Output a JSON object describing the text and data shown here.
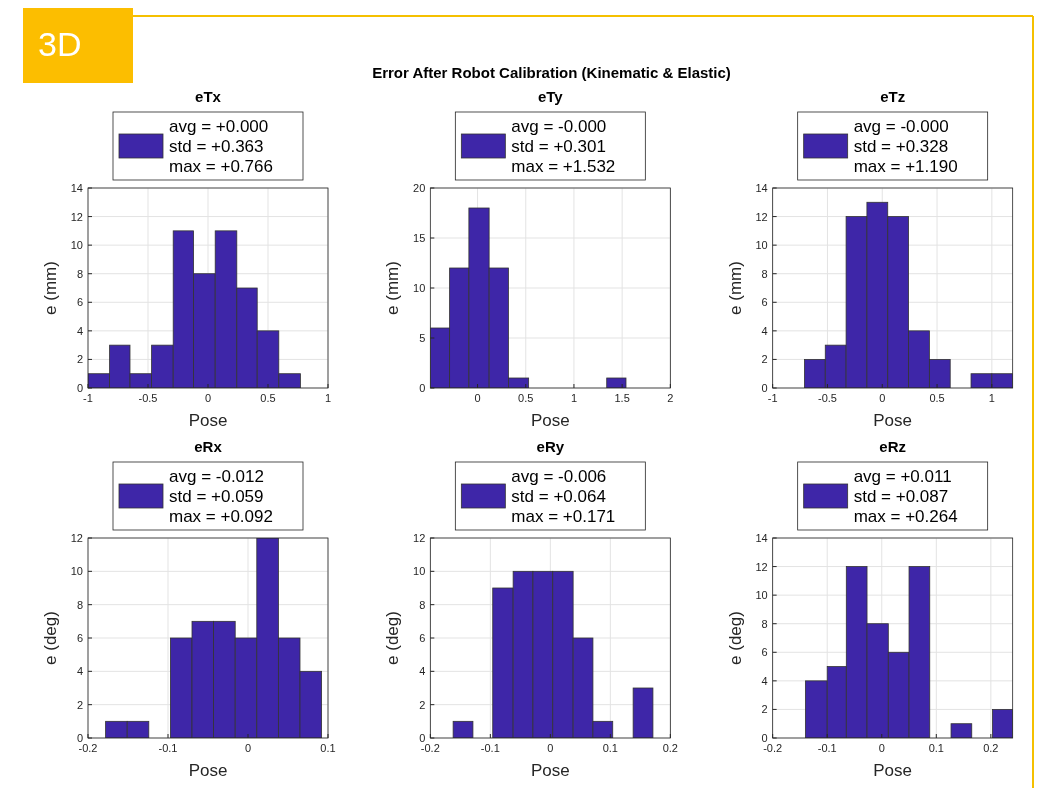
{
  "chart_data": [
    {
      "type": "histogram",
      "title": "eTx",
      "xlabel": "Pose",
      "ylabel": "e (mm)",
      "annotations": [
        "3D",
        "Error After Robot Calibration (Kinematic & Elastic)"
      ],
      "xlim": [
        -1,
        1
      ],
      "xticks": [
        -1,
        -0.5,
        0,
        0.5,
        1
      ],
      "ylim": [
        0,
        14
      ],
      "yticks": [
        0,
        2,
        4,
        6,
        8,
        10,
        12,
        14
      ],
      "grid": true,
      "legend": "top",
      "bins": [
        -1,
        -0.82,
        -0.65,
        -0.47,
        -0.29,
        -0.12,
        0.06,
        0.24,
        0.41,
        0.59,
        0.77
      ],
      "series": [
        {
          "name": "avg = +0.000\nstd = +0.363\nmax = +0.766",
          "color": "#3e26a8",
          "values": [
            1,
            3,
            1,
            3,
            11,
            8,
            11,
            7,
            4,
            1
          ]
        }
      ]
    },
    {
      "type": "histogram",
      "title": "eTy",
      "xlabel": "Pose",
      "ylabel": "e (mm)",
      "xlim": [
        -0.49,
        2
      ],
      "xticks": [
        0,
        0.5,
        1,
        1.5,
        2
      ],
      "ylim": [
        0,
        20
      ],
      "yticks": [
        0,
        5,
        10,
        15,
        20
      ],
      "grid": true,
      "legend": "top",
      "bins": [
        -0.49,
        -0.29,
        -0.09,
        0.12,
        0.32,
        0.53,
        1.34,
        1.54
      ],
      "series": [
        {
          "name": "avg = -0.000\nstd = +0.301\nmax = +1.532",
          "color": "#3e26a8",
          "values": [
            6,
            12,
            18,
            12,
            1,
            0,
            1
          ]
        }
      ]
    },
    {
      "type": "histogram",
      "title": "eTz",
      "xlabel": "Pose",
      "ylabel": "e (mm)",
      "xlim": [
        -1,
        1.19
      ],
      "xticks": [
        -1,
        -0.5,
        0,
        0.5,
        1
      ],
      "ylim": [
        0,
        14
      ],
      "yticks": [
        0,
        2,
        4,
        6,
        8,
        10,
        12,
        14
      ],
      "grid": true,
      "legend": "top",
      "bins": [
        -0.71,
        -0.52,
        -0.33,
        -0.14,
        0.05,
        0.24,
        0.43,
        0.62,
        0.81,
        1,
        1.19
      ],
      "series": [
        {
          "name": "avg = -0.000\nstd = +0.328\nmax = +1.190",
          "color": "#3e26a8",
          "values": [
            2,
            3,
            12,
            13,
            12,
            4,
            2,
            0,
            1,
            1
          ]
        }
      ]
    },
    {
      "type": "histogram",
      "title": "eRx",
      "xlabel": "Pose",
      "ylabel": "e (deg)",
      "xlim": [
        -0.2,
        0.1
      ],
      "xticks": [
        -0.2,
        -0.1,
        0,
        0.1
      ],
      "ylim": [
        0,
        12
      ],
      "yticks": [
        0,
        2,
        4,
        6,
        8,
        10,
        12
      ],
      "grid": true,
      "legend": "top",
      "bins": [
        -0.178,
        -0.151,
        -0.124,
        -0.097,
        -0.07,
        -0.043,
        -0.016,
        0.011,
        0.038,
        0.065,
        0.092
      ],
      "series": [
        {
          "name": "avg = -0.012\nstd = +0.059\nmax = +0.092",
          "color": "#3e26a8",
          "values": [
            1,
            1,
            0,
            6,
            7,
            7,
            6,
            12,
            6,
            4
          ]
        }
      ]
    },
    {
      "type": "histogram",
      "title": "eRy",
      "xlabel": "Pose",
      "ylabel": "e (deg)",
      "xlim": [
        -0.2,
        0.2
      ],
      "xticks": [
        -0.2,
        -0.1,
        0,
        0.1,
        0.2
      ],
      "ylim": [
        0,
        12
      ],
      "yticks": [
        0,
        2,
        4,
        6,
        8,
        10,
        12
      ],
      "grid": true,
      "legend": "top",
      "bins": [
        -0.162,
        -0.129,
        -0.096,
        -0.062,
        -0.029,
        0.004,
        0.038,
        0.071,
        0.104,
        0.138,
        0.171
      ],
      "series": [
        {
          "name": "avg = -0.006\nstd = +0.064\nmax = +0.171",
          "color": "#3e26a8",
          "values": [
            1,
            0,
            9,
            10,
            10,
            10,
            6,
            1,
            0,
            3
          ]
        }
      ]
    },
    {
      "type": "histogram",
      "title": "eRz",
      "xlabel": "Pose",
      "ylabel": "e (deg)",
      "xlim": [
        -0.2,
        0.24
      ],
      "xticks": [
        -0.2,
        -0.1,
        0,
        0.1,
        0.2
      ],
      "ylim": [
        0,
        14
      ],
      "yticks": [
        0,
        2,
        4,
        6,
        8,
        10,
        12,
        14
      ],
      "grid": true,
      "legend": "top",
      "bins": [
        -0.14,
        -0.1,
        -0.065,
        -0.027,
        0.012,
        0.05,
        0.088,
        0.127,
        0.165,
        0.203,
        0.24
      ],
      "series": [
        {
          "name": "avg = +0.011\nstd = +0.087\nmax = +0.264",
          "color": "#3e26a8",
          "values": [
            4,
            5,
            12,
            8,
            6,
            12,
            0,
            1,
            0,
            2
          ]
        }
      ]
    }
  ]
}
